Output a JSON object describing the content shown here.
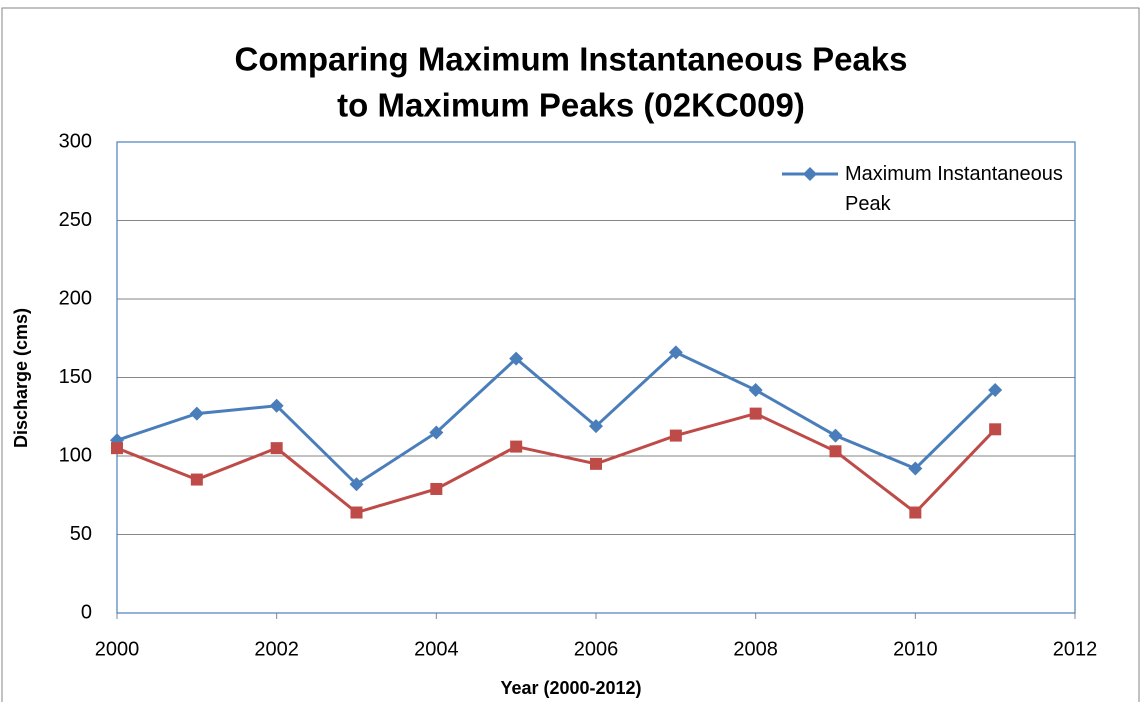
{
  "chart_data": {
    "type": "line",
    "title": [
      "Comparing Maximum Instantaneous Peaks",
      "to Maximum Peaks (02KC009)"
    ],
    "x_label": "Year (2000-2012)",
    "y_label": "Discharge (cms)",
    "x": [
      2000,
      2001,
      2002,
      2003,
      2004,
      2005,
      2006,
      2007,
      2008,
      2009,
      2010,
      2011
    ],
    "series": [
      {
        "name": "Maximum Instantaneous Peak",
        "color": "#4a7ebb",
        "marker": "diamond",
        "values": [
          110,
          127,
          132,
          82,
          115,
          162,
          119,
          166,
          142,
          113,
          92,
          142
        ]
      },
      {
        "color": "#be4b48",
        "marker": "square",
        "values": [
          105,
          85,
          105,
          64,
          79,
          106,
          95,
          113,
          127,
          103,
          64,
          117
        ]
      }
    ],
    "xlim": [
      2000,
      2012
    ],
    "xticks": [
      2000,
      2002,
      2004,
      2006,
      2008,
      2010,
      2012
    ],
    "ylim": [
      0,
      300
    ],
    "yticks": [
      0,
      50,
      100,
      150,
      200,
      250,
      300
    ],
    "grid": true,
    "legend": "upper right"
  }
}
